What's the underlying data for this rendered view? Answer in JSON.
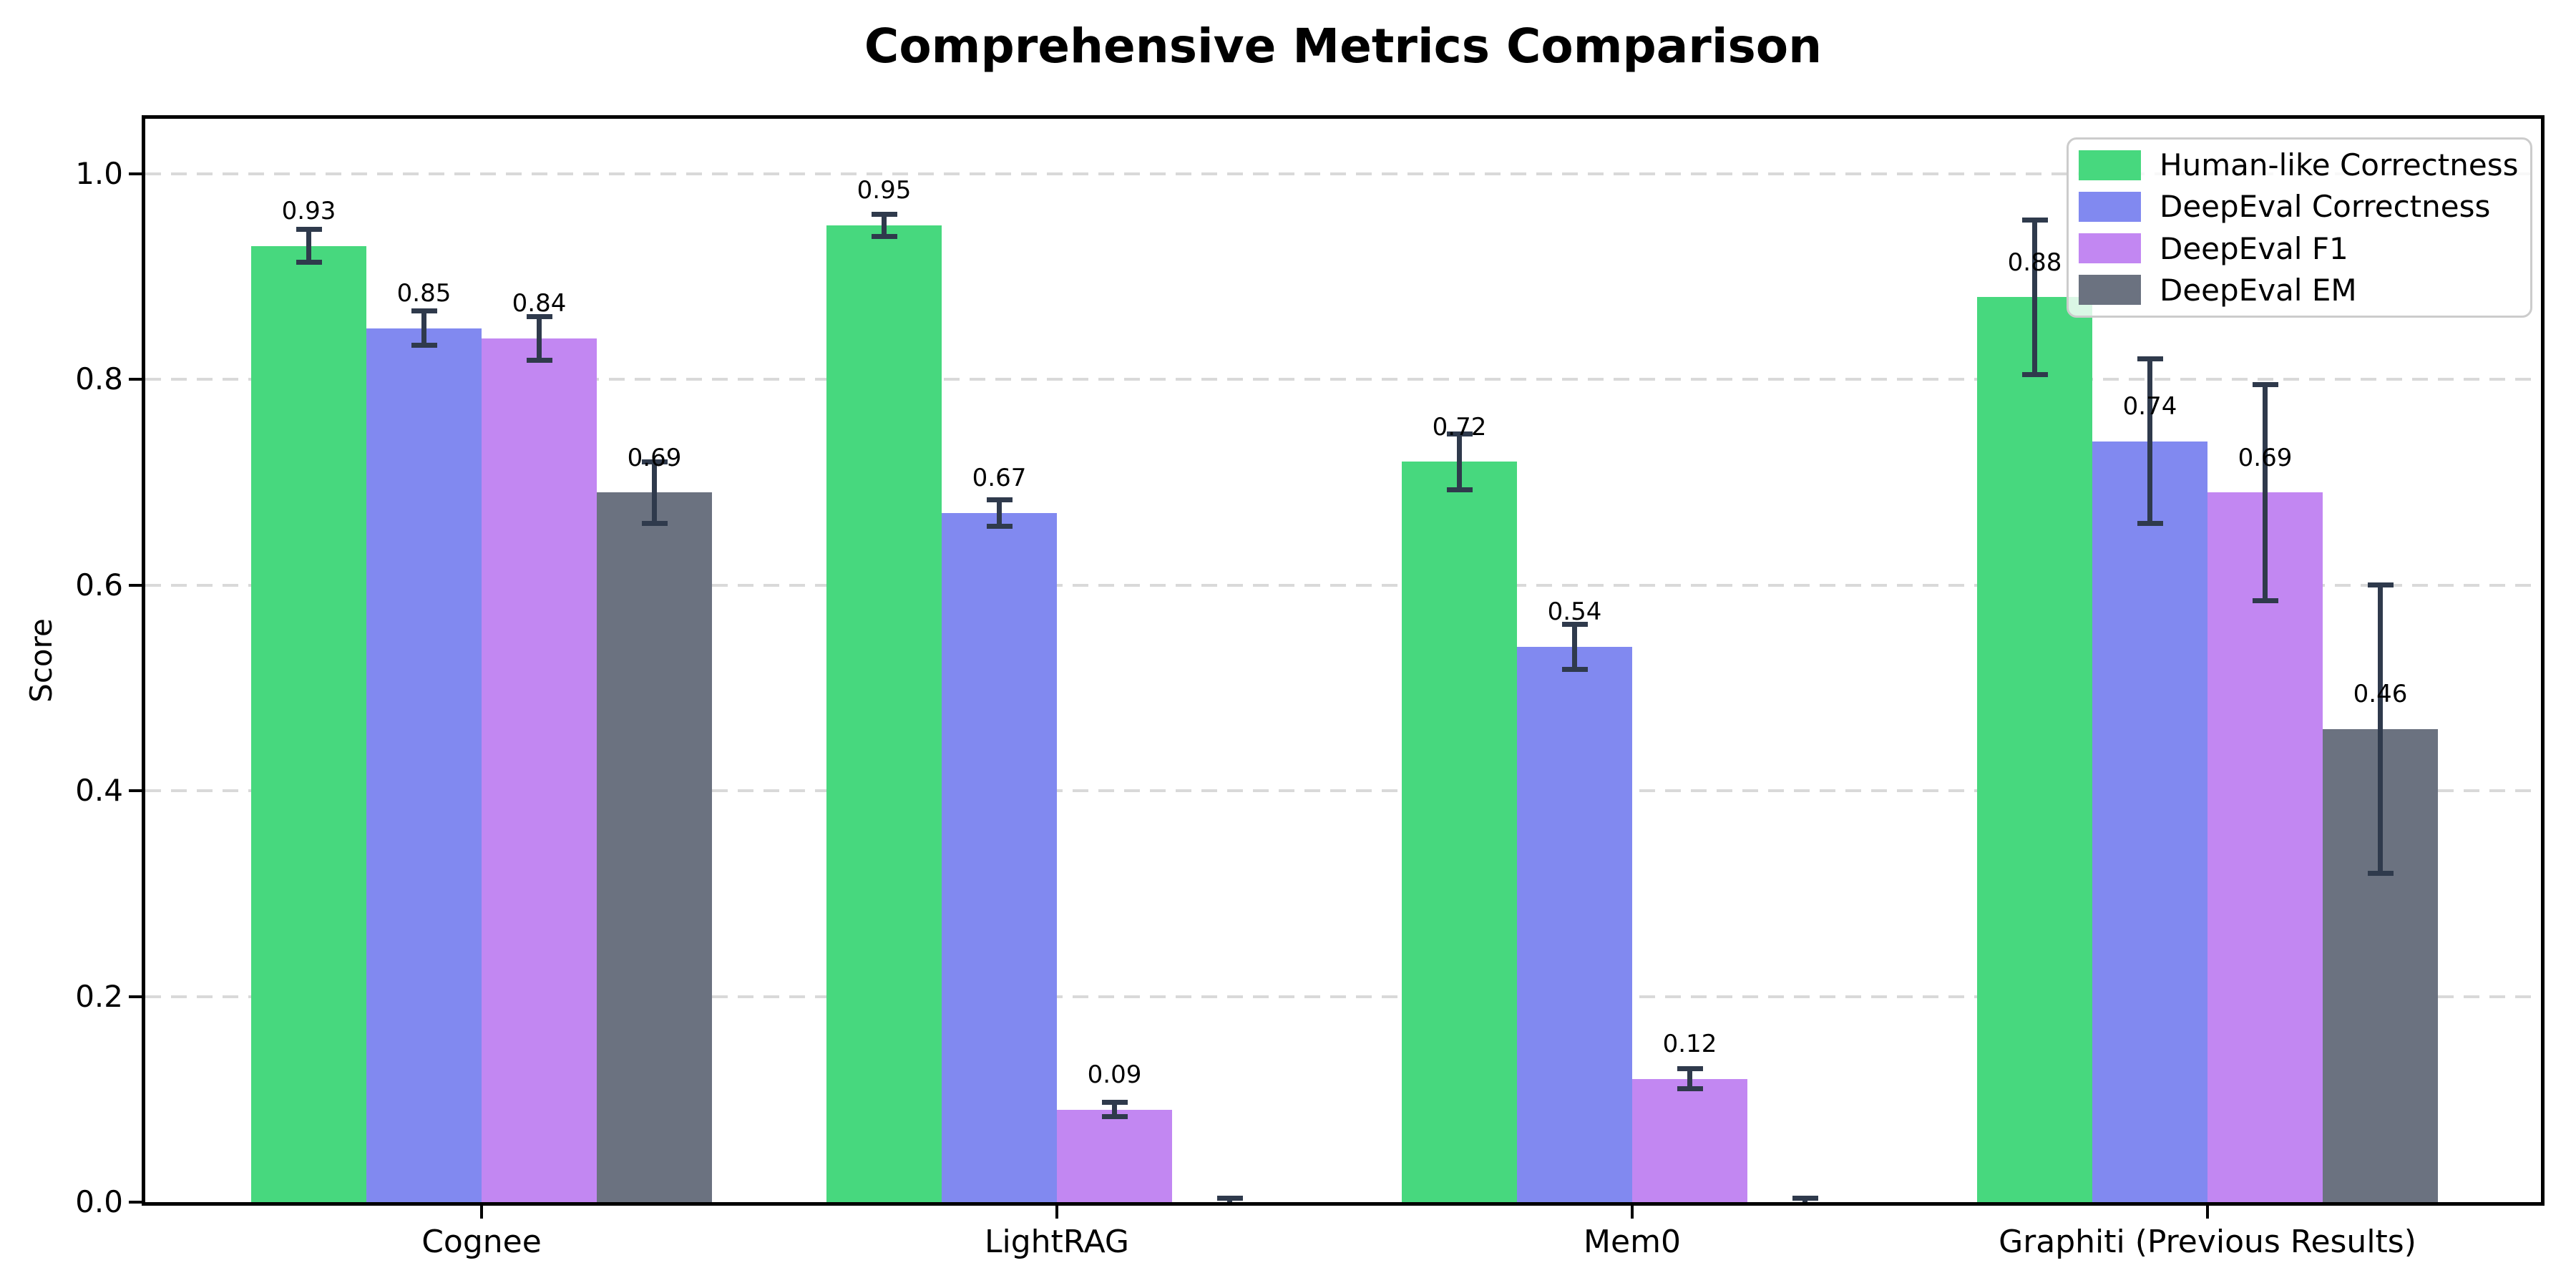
{
  "chart_data": {
    "type": "bar",
    "title": "Comprehensive Metrics Comparison",
    "xlabel": "",
    "ylabel": "Score",
    "ylim": [
      0,
      1.05
    ],
    "grid": "horizontal-dashed",
    "legend_position": "upper-right",
    "grid_color": "#d9d9d9",
    "error_bar_color": "#2f3a4c",
    "categories": [
      "Cognee",
      "LightRAG",
      "Mem0",
      "Graphiti (Previous Results)"
    ],
    "y_ticks": [
      "0.0",
      "0.2",
      "0.4",
      "0.6",
      "0.8",
      "1.0"
    ],
    "series": [
      {
        "name": "Human-like Correctness",
        "color": "#47d87e",
        "values": [
          0.93,
          0.95,
          0.72,
          0.88
        ],
        "errors": [
          0.016,
          0.011,
          0.027,
          0.075
        ],
        "labels": [
          "0.93",
          "0.95",
          "0.72",
          "0.88"
        ]
      },
      {
        "name": "DeepEval Correctness",
        "color": "#8189f0",
        "values": [
          0.85,
          0.67,
          0.54,
          0.74
        ],
        "errors": [
          0.017,
          0.013,
          0.022,
          0.08
        ],
        "labels": [
          "0.85",
          "0.67",
          "0.54",
          "0.74"
        ]
      },
      {
        "name": "DeepEval F1",
        "color": "#c287f2",
        "values": [
          0.84,
          0.09,
          0.12,
          0.69
        ],
        "errors": [
          0.021,
          0.007,
          0.01,
          0.105
        ],
        "labels": [
          "0.84",
          "0.09",
          "0.12",
          "0.69"
        ]
      },
      {
        "name": "DeepEval EM",
        "color": "#6b7280",
        "values": [
          0.69,
          0.0,
          0.0,
          0.46
        ],
        "errors": [
          0.03,
          0.004,
          0.004,
          0.14
        ],
        "labels": [
          "0.69",
          null,
          null,
          "0.46"
        ]
      }
    ]
  }
}
